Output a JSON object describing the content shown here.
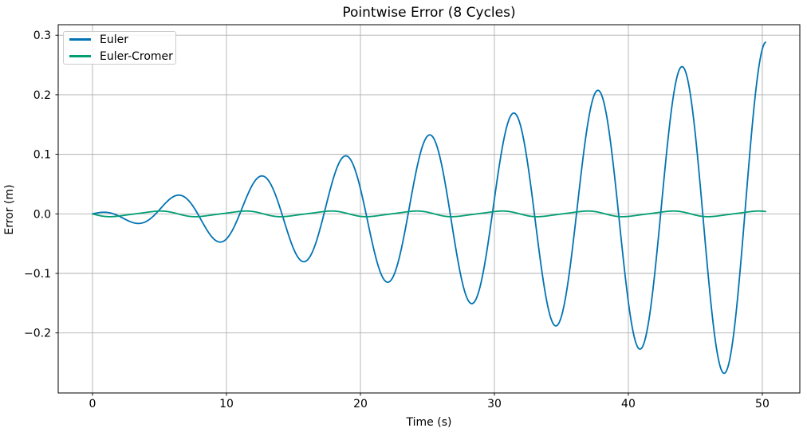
{
  "chart_data": {
    "type": "line",
    "title": "Pointwise Error (8 Cycles)",
    "xlabel": "Time (s)",
    "ylabel": "Error (m)",
    "xlim": [
      -2.56,
      52.8
    ],
    "ylim": [
      -0.3008,
      0.3177
    ],
    "xticks": [
      0,
      10,
      20,
      30,
      40,
      50
    ],
    "xtick_labels": [
      "0",
      "10",
      "20",
      "30",
      "40",
      "50"
    ],
    "yticks": [
      -0.2,
      -0.1,
      0.0,
      0.1,
      0.2,
      0.3
    ],
    "ytick_labels": [
      "−0.2",
      "−0.1",
      "0.0",
      "0.1",
      "0.2",
      "0.3"
    ],
    "grid": true,
    "grid_color": "#b0b0b0",
    "spine_color": "#000000",
    "background_color": "#ffffff",
    "legend_position": "upper-left",
    "t_range": [
      0,
      50.265
    ],
    "series": [
      {
        "name": "Euler",
        "color": "#0173b2",
        "line_width": 1.8,
        "model": {
          "type": "growing_cosine",
          "formula": "a*t*exp(b*t)*cos(w*t)",
          "a": 0.00484,
          "b": 0.0034,
          "w": 1.0
        },
        "peaks": [
          [
            6.28,
            0.031
          ],
          [
            12.57,
            0.065
          ],
          [
            18.85,
            0.098
          ],
          [
            25.13,
            0.134
          ],
          [
            31.42,
            0.17
          ],
          [
            37.7,
            0.209
          ],
          [
            43.98,
            0.246
          ],
          [
            50.27,
            0.287
          ]
        ],
        "troughs": [
          [
            3.14,
            -0.016
          ],
          [
            9.42,
            -0.048
          ],
          [
            15.71,
            -0.081
          ],
          [
            21.99,
            -0.116
          ],
          [
            28.27,
            -0.15
          ],
          [
            34.56,
            -0.189
          ],
          [
            40.84,
            -0.228
          ],
          [
            47.12,
            -0.267
          ]
        ]
      },
      {
        "name": "Euler-Cromer",
        "color": "#029e73",
        "line_width": 1.8,
        "model": {
          "type": "bounded_wiggle",
          "formula": "-a1*sin(w1*t)-a2*sin(w2*t)",
          "a1": 0.0045,
          "w1": 0.985,
          "a2": 0.0008,
          "w2": 1.97
        },
        "envelope_note": "bounded oscillation, amplitude ~0.005 m, period ~6.4 s"
      }
    ]
  }
}
